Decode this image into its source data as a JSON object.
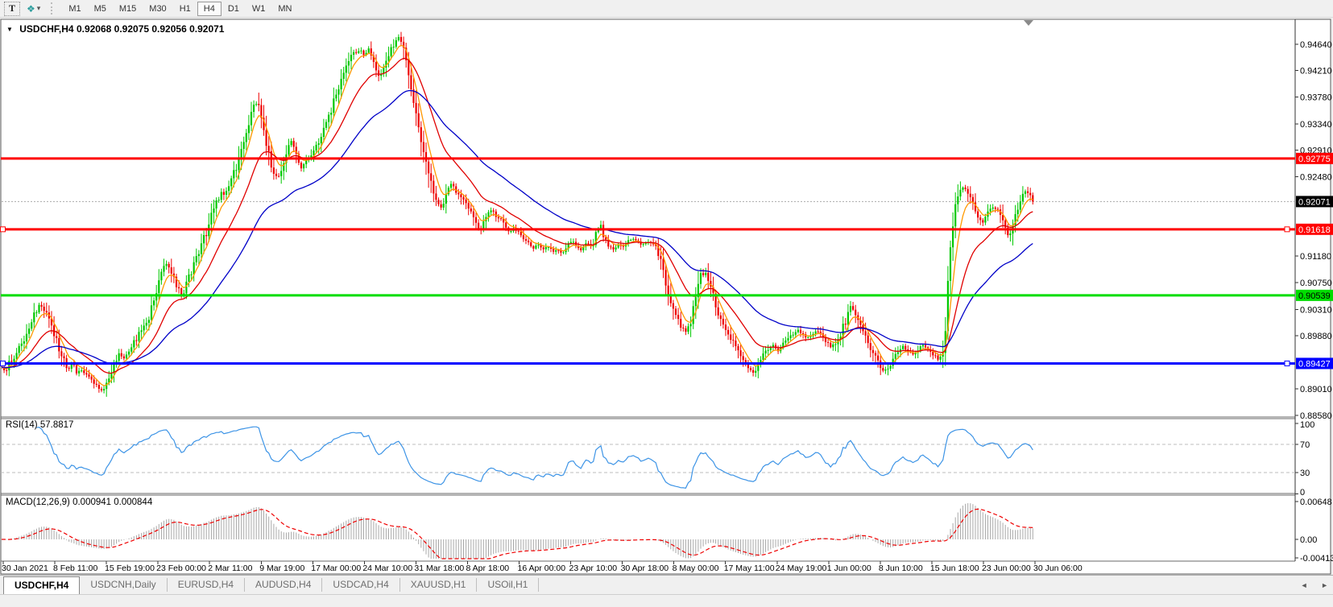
{
  "toolbar": {
    "tools": [
      {
        "name": "type-tool",
        "label": "T"
      },
      {
        "name": "indicator-tool",
        "icon": "❖",
        "caret": "▾"
      }
    ],
    "timeframes": [
      "M1",
      "M5",
      "M15",
      "M30",
      "H1",
      "H4",
      "D1",
      "W1",
      "MN"
    ],
    "active_timeframe": "H4"
  },
  "chart_header": {
    "collapse_icon": "▼",
    "symbol": "USDCHF,H4",
    "ohlc": "0.92068 0.92075 0.92056 0.92071"
  },
  "indicators": {
    "rsi_label": "RSI(14)",
    "rsi_value": "57.8817",
    "macd_label": "MACD(12,26,9)",
    "macd_values": "0.000941 0.000844"
  },
  "tabs": {
    "items": [
      {
        "label": "USDCHF,H4",
        "active": true
      },
      {
        "label": "USDCNH,Daily",
        "active": false
      },
      {
        "label": "EURUSD,H4",
        "active": false
      },
      {
        "label": "AUDUSD,H4",
        "active": false
      },
      {
        "label": "USDCAD,H4",
        "active": false
      },
      {
        "label": "XAUUSD,H1",
        "active": false
      },
      {
        "label": "USOil,H1",
        "active": false
      }
    ],
    "scroll_left": "◄",
    "scroll_right": "►"
  },
  "chart_data": {
    "type": "candlestick",
    "symbol": "USDCHF",
    "timeframe": "H4",
    "title": "USDCHF,H4 0.92068 0.92075 0.92056 0.92071",
    "last_bar": {
      "open": 0.92068,
      "high": 0.92075,
      "low": 0.92056,
      "close": 0.92071
    },
    "candle_colors": {
      "up": "#00c800",
      "down": "#ee0000"
    },
    "price_axis": {
      "tick_labels": [
        "0.94640",
        "0.94210",
        "0.93780",
        "0.93340",
        "0.92910",
        "0.92480",
        "0.91180",
        "0.90750",
        "0.90310",
        "0.89880",
        "0.89010",
        "0.88580"
      ],
      "current_price_label": {
        "value": "0.92071",
        "bg": "#000000",
        "fg": "#ffffff"
      },
      "line_labels": [
        {
          "value": "0.92775",
          "bg": "#ff0000",
          "fg": "#ffffff"
        },
        {
          "value": "0.91618",
          "bg": "#ff0000",
          "fg": "#ffffff"
        },
        {
          "value": "0.90539",
          "bg": "#00dd00",
          "fg": "#000000"
        },
        {
          "value": "0.89427",
          "bg": "#0000ff",
          "fg": "#ffffff"
        }
      ]
    },
    "current_price": 0.92071,
    "hlines": [
      {
        "price": 0.92775,
        "color": "#ff0000",
        "handles": false
      },
      {
        "price": 0.91618,
        "color": "#ff0000",
        "handles": true
      },
      {
        "price": 0.90539,
        "color": "#00dd00",
        "handles": false
      },
      {
        "price": 0.89427,
        "color": "#0000ff",
        "handles": true
      }
    ],
    "moving_averages": [
      {
        "name": "fast",
        "period": 6,
        "color": "#ff9900"
      },
      {
        "name": "medium",
        "period": 20,
        "color": "#e00000"
      },
      {
        "name": "slow",
        "period": 50,
        "color": "#0000c8"
      }
    ],
    "rsi": {
      "period": 14,
      "value": 57.8817,
      "color": "#3d94e6",
      "levels": [
        70,
        30
      ],
      "axis_labels": [
        [
          "100",
          100
        ],
        [
          "70",
          70
        ],
        [
          "30",
          30
        ],
        [
          "0",
          0
        ]
      ]
    },
    "macd": {
      "fast": 12,
      "slow": 26,
      "signal": 9,
      "macd_value": 0.000941,
      "signal_value": 0.000844,
      "histogram_color": "#a8a8a8",
      "signal_color": "#ee0000",
      "axis_labels": [
        [
          "0.00648",
          623
        ],
        [
          "0.00",
          670
        ],
        [
          "-0.00413",
          693
        ]
      ]
    },
    "time_axis": {
      "labels": [
        "30 Jan 2021",
        "8 Feb 11:00",
        "15 Feb 19:00",
        "23 Feb 00:00",
        "2 Mar 11:00",
        "9 Mar 19:00",
        "17 Mar 00:00",
        "24 Mar 10:00",
        "31 Mar 18:00",
        "8 Apr 18:00",
        "16 Apr 00:00",
        "23 Apr 10:00",
        "30 Apr 18:00",
        "8 May 00:00",
        "17 May 11:00",
        "24 May 19:00",
        "1 Jun 00:00",
        "8 Jun 10:00",
        "15 Jun 18:00",
        "23 Jun 00:00",
        "30 Jun 06:00"
      ]
    },
    "price_path": [
      [
        2,
        0.89381
      ],
      [
        6,
        0.89289
      ],
      [
        12,
        0.89446
      ],
      [
        18,
        0.89552
      ],
      [
        24,
        0.89683
      ],
      [
        30,
        0.89841
      ],
      [
        36,
        0.90025
      ],
      [
        42,
        0.90209
      ],
      [
        48,
        0.90367
      ],
      [
        54,
        0.90314
      ],
      [
        60,
        0.90156
      ],
      [
        66,
        0.89946
      ],
      [
        72,
        0.89736
      ],
      [
        78,
        0.89512
      ],
      [
        84,
        0.89341
      ],
      [
        90,
        0.8942
      ],
      [
        96,
        0.89263
      ],
      [
        102,
        0.89341
      ],
      [
        108,
        0.8921
      ],
      [
        114,
        0.89131
      ],
      [
        120,
        0.89078
      ],
      [
        126,
        0.88999
      ],
      [
        131,
        0.89052
      ],
      [
        136,
        0.8921
      ],
      [
        142,
        0.89446
      ],
      [
        148,
        0.89604
      ],
      [
        154,
        0.89525
      ],
      [
        160,
        0.89657
      ],
      [
        166,
        0.89762
      ],
      [
        172,
        0.89894
      ],
      [
        178,
        0.90051
      ],
      [
        184,
        0.90156
      ],
      [
        190,
        0.90393
      ],
      [
        196,
        0.90696
      ],
      [
        202,
        0.90958
      ],
      [
        208,
        0.9105
      ],
      [
        214,
        0.90893
      ],
      [
        220,
        0.90682
      ],
      [
        226,
        0.90525
      ],
      [
        232,
        0.90735
      ],
      [
        238,
        0.90945
      ],
      [
        244,
        0.91156
      ],
      [
        250,
        0.91392
      ],
      [
        256,
        0.9155
      ],
      [
        262,
        0.91839
      ],
      [
        268,
        0.9205
      ],
      [
        274,
        0.92181
      ],
      [
        280,
        0.92234
      ],
      [
        286,
        0.92392
      ],
      [
        292,
        0.92576
      ],
      [
        298,
        0.92839
      ],
      [
        304,
        0.93128
      ],
      [
        310,
        0.93417
      ],
      [
        316,
        0.9368
      ],
      [
        321,
        0.93627
      ],
      [
        326,
        0.93285
      ],
      [
        332,
        0.92918
      ],
      [
        338,
        0.92629
      ],
      [
        344,
        0.92444
      ],
      [
        350,
        0.92576
      ],
      [
        356,
        0.92892
      ],
      [
        362,
        0.93075
      ],
      [
        368,
        0.92839
      ],
      [
        374,
        0.92629
      ],
      [
        380,
        0.92734
      ],
      [
        386,
        0.92786
      ],
      [
        392,
        0.92944
      ],
      [
        398,
        0.93154
      ],
      [
        404,
        0.93364
      ],
      [
        410,
        0.93522
      ],
      [
        416,
        0.93759
      ],
      [
        422,
        0.93969
      ],
      [
        428,
        0.9418
      ],
      [
        434,
        0.9439
      ],
      [
        440,
        0.94509
      ],
      [
        446,
        0.94548
      ],
      [
        452,
        0.94469
      ],
      [
        458,
        0.94548
      ],
      [
        464,
        0.9439
      ],
      [
        470,
        0.94127
      ],
      [
        476,
        0.94232
      ],
      [
        482,
        0.94443
      ],
      [
        488,
        0.94627
      ],
      [
        494,
        0.94758
      ],
      [
        500,
        0.94601
      ],
      [
        506,
        0.94206
      ],
      [
        512,
        0.93759
      ],
      [
        518,
        0.93364
      ],
      [
        524,
        0.9297
      ],
      [
        530,
        0.92602
      ],
      [
        536,
        0.92313
      ],
      [
        542,
        0.92076
      ],
      [
        548,
        0.91971
      ],
      [
        554,
        0.92207
      ],
      [
        560,
        0.92365
      ],
      [
        566,
        0.92234
      ],
      [
        572,
        0.92129
      ],
      [
        578,
        0.92024
      ],
      [
        584,
        0.91918
      ],
      [
        590,
        0.9176
      ],
      [
        596,
        0.91576
      ],
      [
        602,
        0.91787
      ],
      [
        608,
        0.91944
      ],
      [
        614,
        0.91866
      ],
      [
        620,
        0.91787
      ],
      [
        626,
        0.91681
      ],
      [
        632,
        0.91576
      ],
      [
        638,
        0.91655
      ],
      [
        644,
        0.9155
      ],
      [
        650,
        0.91471
      ],
      [
        656,
        0.91392
      ],
      [
        662,
        0.91313
      ],
      [
        668,
        0.91392
      ],
      [
        674,
        0.91287
      ],
      [
        680,
        0.91366
      ],
      [
        686,
        0.91261
      ],
      [
        692,
        0.91313
      ],
      [
        698,
        0.91221
      ],
      [
        704,
        0.9134
      ],
      [
        710,
        0.91445
      ],
      [
        716,
        0.9134
      ],
      [
        722,
        0.91287
      ],
      [
        728,
        0.91392
      ],
      [
        734,
        0.91313
      ],
      [
        740,
        0.91524
      ],
      [
        745,
        0.91734
      ],
      [
        750,
        0.91471
      ],
      [
        756,
        0.9134
      ],
      [
        762,
        0.91287
      ],
      [
        768,
        0.91379
      ],
      [
        774,
        0.91313
      ],
      [
        780,
        0.91432
      ],
      [
        786,
        0.91458
      ],
      [
        792,
        0.91405
      ],
      [
        798,
        0.91353
      ],
      [
        804,
        0.91418
      ],
      [
        810,
        0.91379
      ],
      [
        816,
        0.91261
      ],
      [
        822,
        0.90998
      ],
      [
        828,
        0.90682
      ],
      [
        834,
        0.90393
      ],
      [
        840,
        0.90156
      ],
      [
        846,
        0.89999
      ],
      [
        852,
        0.89972
      ],
      [
        858,
        0.9013
      ],
      [
        864,
        0.90498
      ],
      [
        870,
        0.90866
      ],
      [
        876,
        0.90919
      ],
      [
        882,
        0.90682
      ],
      [
        888,
        0.90393
      ],
      [
        894,
        0.90182
      ],
      [
        900,
        0.90025
      ],
      [
        906,
        0.89867
      ],
      [
        912,
        0.89709
      ],
      [
        918,
        0.89578
      ],
      [
        924,
        0.89446
      ],
      [
        930,
        0.89341
      ],
      [
        936,
        0.89289
      ],
      [
        942,
        0.8942
      ],
      [
        948,
        0.89578
      ],
      [
        954,
        0.89683
      ],
      [
        960,
        0.89736
      ],
      [
        966,
        0.8963
      ],
      [
        972,
        0.89736
      ],
      [
        978,
        0.89828
      ],
      [
        984,
        0.89894
      ],
      [
        990,
        0.89972
      ],
      [
        996,
        0.8992
      ],
      [
        1002,
        0.89841
      ],
      [
        1008,
        0.8992
      ],
      [
        1014,
        0.89972
      ],
      [
        1020,
        0.89867
      ],
      [
        1026,
        0.89762
      ],
      [
        1032,
        0.89683
      ],
      [
        1038,
        0.89762
      ],
      [
        1044,
        0.8992
      ],
      [
        1050,
        0.9013
      ],
      [
        1056,
        0.90393
      ],
      [
        1062,
        0.90261
      ],
      [
        1068,
        0.90078
      ],
      [
        1074,
        0.89894
      ],
      [
        1080,
        0.89709
      ],
      [
        1086,
        0.89552
      ],
      [
        1092,
        0.89394
      ],
      [
        1098,
        0.89289
      ],
      [
        1104,
        0.89368
      ],
      [
        1110,
        0.89499
      ],
      [
        1116,
        0.8963
      ],
      [
        1122,
        0.89709
      ],
      [
        1128,
        0.8963
      ],
      [
        1134,
        0.89552
      ],
      [
        1140,
        0.89657
      ],
      [
        1146,
        0.89709
      ],
      [
        1152,
        0.8963
      ],
      [
        1158,
        0.89565
      ],
      [
        1164,
        0.89512
      ],
      [
        1170,
        0.89473
      ],
      [
        1174,
        0.89946
      ],
      [
        1177,
        0.90735
      ],
      [
        1180,
        0.91287
      ],
      [
        1184,
        0.91787
      ],
      [
        1188,
        0.92102
      ],
      [
        1192,
        0.92273
      ],
      [
        1196,
        0.92313
      ],
      [
        1200,
        0.92234
      ],
      [
        1204,
        0.92129
      ],
      [
        1208,
        0.91997
      ],
      [
        1212,
        0.91866
      ],
      [
        1216,
        0.9176
      ],
      [
        1220,
        0.91721
      ],
      [
        1224,
        0.91813
      ],
      [
        1228,
        0.91905
      ],
      [
        1232,
        0.91971
      ],
      [
        1236,
        0.91944
      ],
      [
        1240,
        0.91892
      ],
      [
        1244,
        0.91813
      ],
      [
        1248,
        0.91681
      ],
      [
        1252,
        0.91471
      ],
      [
        1255,
        0.9155
      ],
      [
        1258,
        0.91708
      ],
      [
        1262,
        0.91918
      ],
      [
        1266,
        0.92076
      ],
      [
        1270,
        0.92207
      ],
      [
        1274,
        0.9226
      ],
      [
        1278,
        0.92207
      ],
      [
        1282,
        0.92102
      ],
      [
        1285,
        0.92071
      ]
    ]
  }
}
